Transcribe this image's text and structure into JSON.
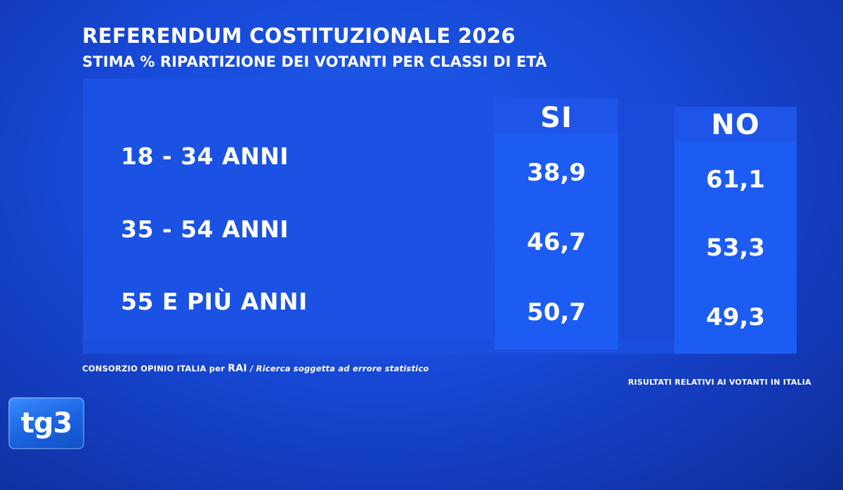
{
  "title": "REFERENDUM COSTITUZIONALE 2026",
  "subtitle": "STIMA % RIPARTIZIONE DEI VOTANTI PER CLASSI DI ETÀ",
  "footer": {
    "source_prefix": "CONSORZIO OPINIO ITALIA per",
    "source_brand": "RAI",
    "source_note": "/ Ricerca soggetta ad errore statistico",
    "scope_note": "RISULTATI RELATIVI AI VOTANTI IN ITALIA"
  },
  "logo": {
    "text": "tg3"
  },
  "colors": {
    "background": "#1748d6",
    "column": "#1d5cf2",
    "text": "#ffffff"
  },
  "chart_data": {
    "type": "table",
    "title": "REFERENDUM COSTITUZIONALE 2026",
    "subtitle": "STIMA % RIPARTIZIONE DEI VOTANTI PER CLASSI DI ETÀ",
    "columns": [
      "SI",
      "NO"
    ],
    "rows": [
      {
        "label": "18 - 34 ANNI",
        "values": [
          "38,9",
          "61,1"
        ]
      },
      {
        "label": "35 - 54 ANNI",
        "values": [
          "46,7",
          "53,3"
        ]
      },
      {
        "label": "55 E PIÙ ANNI",
        "values": [
          "50,7",
          "49,3"
        ]
      }
    ]
  }
}
